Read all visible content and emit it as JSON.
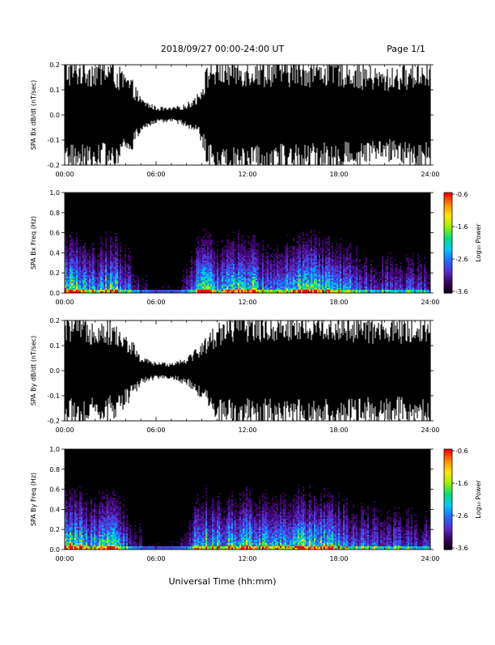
{
  "header": {
    "title": "2018/09/27  00:00-24:00 UT",
    "page": "Page 1/1"
  },
  "xlabel": "Universal Time (hh:mm)",
  "colorbar_label": "Log₁₀ Power",
  "colors": {
    "trace": "#000000",
    "spectrogram_background": "#000000",
    "colormap": [
      "#000000",
      "#3a0062",
      "#5a2ecf",
      "#1f6cff",
      "#00c8ff",
      "#00e07a",
      "#9cf000",
      "#ffe600",
      "#ff8a00",
      "#ff0000"
    ]
  },
  "chart_data": [
    {
      "type": "line",
      "ylabel": "SPA Bx dB/dt (nT/sec)",
      "xlim": [
        0,
        24
      ],
      "ylim": [
        -0.2,
        0.2
      ],
      "x_ticks": [
        "00:00",
        "06:00",
        "12:00",
        "18:00",
        "24:00"
      ],
      "y_ticks": [
        "0.2",
        "0.1",
        "0.0",
        "-0.1",
        "-0.2"
      ],
      "envelope": [
        {
          "h": 0.0,
          "a": 0.2
        },
        {
          "h": 3.0,
          "a": 0.2
        },
        {
          "h": 4.5,
          "a": 0.12
        },
        {
          "h": 5.0,
          "a": 0.06
        },
        {
          "h": 6.0,
          "a": 0.03
        },
        {
          "h": 7.0,
          "a": 0.025
        },
        {
          "h": 8.0,
          "a": 0.04
        },
        {
          "h": 8.8,
          "a": 0.08
        },
        {
          "h": 9.5,
          "a": 0.2
        },
        {
          "h": 12.0,
          "a": 0.2
        },
        {
          "h": 18.0,
          "a": 0.2
        },
        {
          "h": 21.0,
          "a": 0.16
        },
        {
          "h": 24.0,
          "a": 0.2
        }
      ]
    },
    {
      "type": "heatmap",
      "ylabel": "SPA Bx Freq (Hz)",
      "xlim": [
        0,
        24
      ],
      "ylim": [
        0.0,
        1.0
      ],
      "x_ticks": [
        "00:00",
        "06:00",
        "12:00",
        "18:00",
        "24:00"
      ],
      "y_ticks": [
        "1.0",
        "0.8",
        "0.6",
        "0.4",
        "0.2",
        "0.0"
      ],
      "colorbar": {
        "range": [
          -3.6,
          -0.6
        ],
        "ticks": [
          "-0.6",
          "-1.6",
          "-2.6",
          "-3.6"
        ]
      },
      "activity": [
        {
          "h": 0.0,
          "v": 0.9
        },
        {
          "h": 1.0,
          "v": 0.75
        },
        {
          "h": 2.0,
          "v": 0.55
        },
        {
          "h": 3.0,
          "v": 0.8
        },
        {
          "h": 4.0,
          "v": 0.4
        },
        {
          "h": 5.0,
          "v": 0.15
        },
        {
          "h": 6.0,
          "v": 0.1
        },
        {
          "h": 7.0,
          "v": 0.1
        },
        {
          "h": 8.0,
          "v": 0.2
        },
        {
          "h": 9.0,
          "v": 0.85
        },
        {
          "h": 10.0,
          "v": 0.55
        },
        {
          "h": 11.0,
          "v": 0.7
        },
        {
          "h": 12.0,
          "v": 0.85
        },
        {
          "h": 13.0,
          "v": 0.6
        },
        {
          "h": 14.0,
          "v": 0.55
        },
        {
          "h": 15.0,
          "v": 0.75
        },
        {
          "h": 16.0,
          "v": 0.8
        },
        {
          "h": 17.0,
          "v": 0.75
        },
        {
          "h": 18.0,
          "v": 0.55
        },
        {
          "h": 19.0,
          "v": 0.45
        },
        {
          "h": 20.0,
          "v": 0.35
        },
        {
          "h": 21.0,
          "v": 0.35
        },
        {
          "h": 22.0,
          "v": 0.35
        },
        {
          "h": 23.0,
          "v": 0.3
        },
        {
          "h": 24.0,
          "v": 0.3
        }
      ]
    },
    {
      "type": "line",
      "ylabel": "SPA By dB/dt (nT/sec)",
      "xlim": [
        0,
        24
      ],
      "ylim": [
        -0.2,
        0.2
      ],
      "x_ticks": [
        "00:00",
        "06:00",
        "12:00",
        "18:00",
        "24:00"
      ],
      "y_ticks": [
        "0.2",
        "0.1",
        "0.0",
        "-0.1",
        "-0.2"
      ],
      "envelope": [
        {
          "h": 0.0,
          "a": 0.2
        },
        {
          "h": 3.0,
          "a": 0.18
        },
        {
          "h": 4.5,
          "a": 0.1
        },
        {
          "h": 5.0,
          "a": 0.05
        },
        {
          "h": 6.0,
          "a": 0.03
        },
        {
          "h": 7.0,
          "a": 0.03
        },
        {
          "h": 8.0,
          "a": 0.05
        },
        {
          "h": 8.8,
          "a": 0.09
        },
        {
          "h": 10.5,
          "a": 0.2
        },
        {
          "h": 18.0,
          "a": 0.2
        },
        {
          "h": 21.0,
          "a": 0.18
        },
        {
          "h": 24.0,
          "a": 0.2
        }
      ]
    },
    {
      "type": "heatmap",
      "ylabel": "SPA By Freq (Hz)",
      "xlim": [
        0,
        24
      ],
      "ylim": [
        0.0,
        1.0
      ],
      "x_ticks": [
        "00:00",
        "06:00",
        "12:00",
        "18:00",
        "24:00"
      ],
      "y_ticks": [
        "1.0",
        "0.8",
        "0.6",
        "0.4",
        "0.2",
        "0.0"
      ],
      "colorbar": {
        "range": [
          -3.6,
          -0.6
        ],
        "ticks": [
          "-0.6",
          "-1.6",
          "-2.6",
          "-3.6"
        ]
      },
      "activity": [
        {
          "h": 0.0,
          "v": 0.9
        },
        {
          "h": 1.0,
          "v": 0.8
        },
        {
          "h": 2.0,
          "v": 0.6
        },
        {
          "h": 3.0,
          "v": 0.75
        },
        {
          "h": 4.0,
          "v": 0.4
        },
        {
          "h": 5.0,
          "v": 0.15
        },
        {
          "h": 6.0,
          "v": 0.1
        },
        {
          "h": 7.0,
          "v": 0.1
        },
        {
          "h": 8.0,
          "v": 0.25
        },
        {
          "h": 9.0,
          "v": 0.85
        },
        {
          "h": 10.0,
          "v": 0.6
        },
        {
          "h": 11.0,
          "v": 0.75
        },
        {
          "h": 12.0,
          "v": 0.85
        },
        {
          "h": 13.0,
          "v": 0.65
        },
        {
          "h": 14.0,
          "v": 0.6
        },
        {
          "h": 15.0,
          "v": 0.75
        },
        {
          "h": 16.0,
          "v": 0.85
        },
        {
          "h": 17.0,
          "v": 0.8
        },
        {
          "h": 18.0,
          "v": 0.6
        },
        {
          "h": 19.0,
          "v": 0.5
        },
        {
          "h": 20.0,
          "v": 0.4
        },
        {
          "h": 21.0,
          "v": 0.35
        },
        {
          "h": 22.0,
          "v": 0.35
        },
        {
          "h": 23.0,
          "v": 0.3
        },
        {
          "h": 24.0,
          "v": 0.3
        }
      ]
    }
  ]
}
